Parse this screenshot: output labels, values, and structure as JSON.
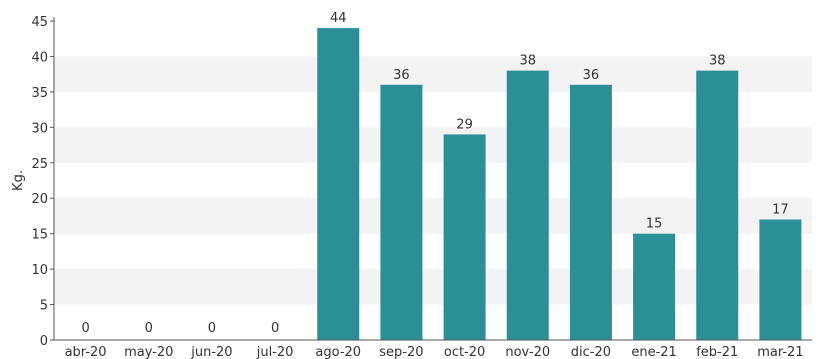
{
  "chart_data": {
    "type": "bar",
    "ylabel": "Kg.",
    "xlabel": "",
    "ylim": [
      0,
      45
    ],
    "yticks": [
      0,
      5,
      10,
      15,
      20,
      25,
      30,
      35,
      40,
      45
    ],
    "categories": [
      "abr-20",
      "may-20",
      "jun-20",
      "jul-20",
      "ago-20",
      "sep-20",
      "oct-20",
      "nov-20",
      "dic-20",
      "ene-21",
      "feb-21",
      "mar-21"
    ],
    "values": [
      0,
      0,
      0,
      0,
      44,
      36,
      29,
      38,
      36,
      15,
      38,
      17
    ],
    "grid": "horizontal alternating bands",
    "colors": {
      "bar": "#2a8f96",
      "band": "#f3f3f3",
      "axis": "#555555",
      "text": "#333333"
    }
  }
}
